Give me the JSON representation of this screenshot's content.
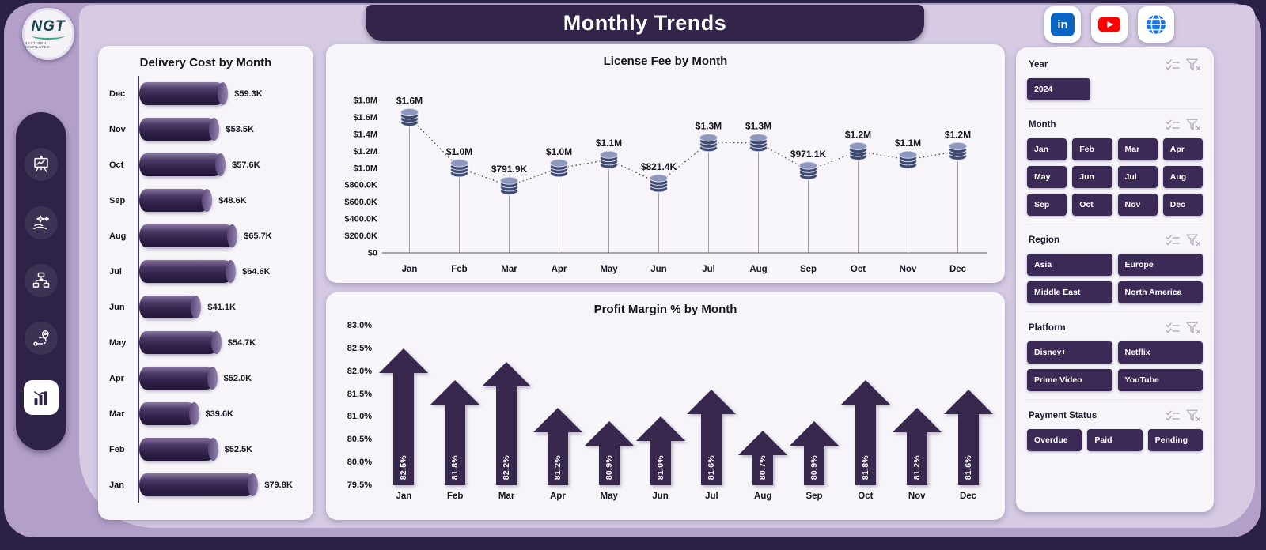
{
  "header": {
    "title": "Monthly Trends"
  },
  "logo": {
    "text": "NGT",
    "subtext": "NEXT GEN TEMPLATES"
  },
  "social": {
    "linkedin_label": "in",
    "items": [
      "linkedin",
      "youtube",
      "website"
    ]
  },
  "sidebar": {
    "items": [
      "presentation",
      "sparkles",
      "hierarchy",
      "route",
      "bar-chart"
    ]
  },
  "colors": {
    "accent_purple": "#3b2a55",
    "banner": "#33254a",
    "background": "#b3a0c8",
    "panel": "#f7f4fa",
    "linkedin": "#0a66c2",
    "youtube": "#ff0000",
    "web_globe": "#1273eb",
    "coin": "#3f4a70"
  },
  "chart_data": [
    {
      "type": "bar",
      "orientation": "horizontal",
      "title": "Delivery Cost by Month",
      "categories": [
        "Dec",
        "Nov",
        "Oct",
        "Sep",
        "Aug",
        "Jul",
        "Jun",
        "May",
        "Apr",
        "Mar",
        "Feb",
        "Jan"
      ],
      "values": [
        59.3,
        53.5,
        57.6,
        48.6,
        65.7,
        64.6,
        41.1,
        54.7,
        52.0,
        39.6,
        52.5,
        79.8
      ],
      "labels": [
        "$59.3K",
        "$53.5K",
        "$57.6K",
        "$48.6K",
        "$65.7K",
        "$64.6K",
        "$41.1K",
        "$54.7K",
        "$52.0K",
        "$39.6K",
        "$52.5K",
        "$79.8K"
      ],
      "xlabel": "",
      "ylabel": "",
      "xlim": [
        0,
        79.8
      ],
      "grid": false
    },
    {
      "type": "line",
      "title": "License Fee by Month",
      "categories": [
        "Jan",
        "Feb",
        "Mar",
        "Apr",
        "May",
        "Jun",
        "Jul",
        "Aug",
        "Sep",
        "Oct",
        "Nov",
        "Dec"
      ],
      "values": [
        1600000,
        1000000,
        791900,
        1000000,
        1100000,
        821400,
        1300000,
        1300000,
        971100,
        1200000,
        1100000,
        1200000
      ],
      "labels": [
        "$1.6M",
        "$1.0M",
        "$791.9K",
        "$1.0M",
        "$1.1M",
        "$821.4K",
        "$1.3M",
        "$1.3M",
        "$971.1K",
        "$1.2M",
        "$1.1M",
        "$1.2M"
      ],
      "ytick_labels": [
        "$0",
        "$200.0K",
        "$400.0K",
        "$600.0K",
        "$800.0K",
        "$1.0M",
        "$1.2M",
        "$1.4M",
        "$1.6M",
        "$1.8M"
      ],
      "ylim": [
        0,
        1800000
      ],
      "marker": "coin-stack",
      "line_style": "dotted",
      "grid": false
    },
    {
      "type": "bar",
      "title": "Profit Margin % by Month",
      "categories": [
        "Jan",
        "Feb",
        "Mar",
        "Apr",
        "May",
        "Jun",
        "Jul",
        "Aug",
        "Sep",
        "Oct",
        "Nov",
        "Dec"
      ],
      "values": [
        82.5,
        81.8,
        82.2,
        81.2,
        80.9,
        81.0,
        81.6,
        80.7,
        80.9,
        81.8,
        81.2,
        81.6
      ],
      "labels": [
        "82.5%",
        "81.8%",
        "82.2%",
        "81.2%",
        "80.9%",
        "81.0%",
        "81.6%",
        "80.7%",
        "80.9%",
        "81.8%",
        "81.2%",
        "81.6%"
      ],
      "ytick_labels": [
        "79.5%",
        "80.0%",
        "80.5%",
        "81.0%",
        "81.5%",
        "82.0%",
        "82.5%",
        "83.0%"
      ],
      "ylim": [
        79.5,
        83.0
      ],
      "bar_shape": "up-arrow",
      "grid": false
    }
  ],
  "slicers": [
    {
      "label": "Year",
      "cols": 1,
      "options": [
        "2024"
      ]
    },
    {
      "label": "Month",
      "cols": 4,
      "options": [
        "Jan",
        "Feb",
        "Mar",
        "Apr",
        "May",
        "Jun",
        "Jul",
        "Aug",
        "Sep",
        "Oct",
        "Nov",
        "Dec"
      ]
    },
    {
      "label": "Region",
      "cols": 2,
      "options": [
        "Asia",
        "Europe",
        "Middle East",
        "North America"
      ]
    },
    {
      "label": "Platform",
      "cols": 2,
      "options": [
        "Disney+",
        "Netflix",
        "Prime Video",
        "YouTube"
      ]
    },
    {
      "label": "Payment Status",
      "cols": 3,
      "options": [
        "Overdue",
        "Paid",
        "Pending"
      ]
    }
  ]
}
